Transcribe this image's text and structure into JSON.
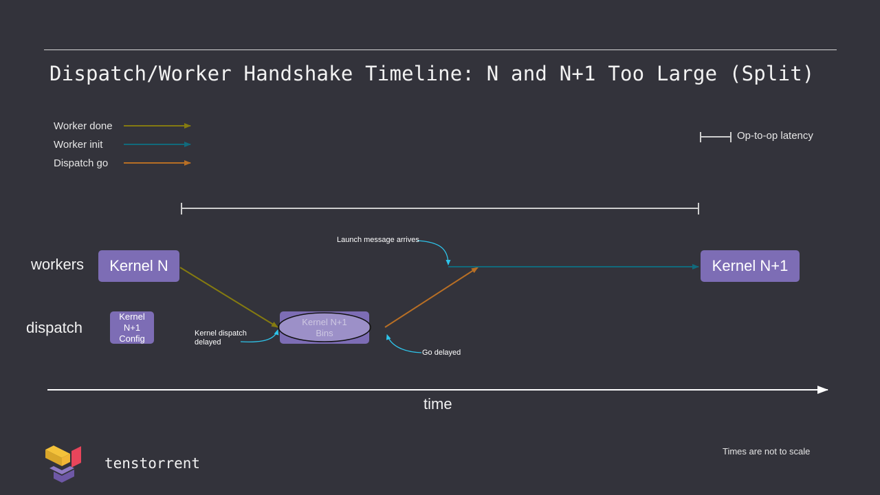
{
  "title": "Dispatch/Worker Handshake Timeline: N and N+1 Too Large (Split)",
  "legend": {
    "items": [
      {
        "label": "Worker done",
        "color": "#857b10"
      },
      {
        "label": "Worker init",
        "color": "#116a7c"
      },
      {
        "label": "Dispatch go",
        "color": "#b86f25"
      }
    ],
    "latency_label": "Op-to-op latency"
  },
  "rows": {
    "workers": "workers",
    "dispatch": "dispatch"
  },
  "boxes": {
    "kernel_n": "Kernel N",
    "kernel_n1": "Kernel N+1",
    "config_lines": [
      "Kernel",
      "N+1",
      "Config"
    ],
    "bins_lines": [
      "Kernel N+1",
      "Bins"
    ]
  },
  "annotations": {
    "launch": "Launch message arrives",
    "kernel_dispatch_delayed_lines": [
      "Kernel dispatch",
      "delayed"
    ],
    "go_delayed": "Go delayed"
  },
  "axis_label": "time",
  "note": "Times are not to scale",
  "brand": "tenstorrent",
  "colors": {
    "box": "#7d6db5",
    "callout": "#2ec4ea",
    "background": "#33333b"
  }
}
